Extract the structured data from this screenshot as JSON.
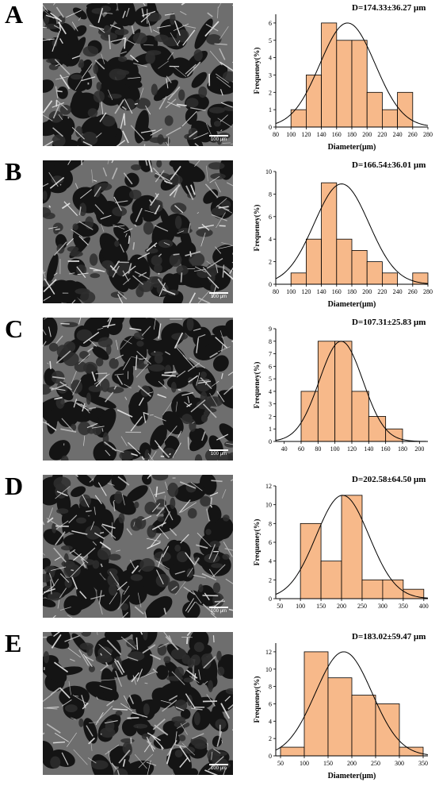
{
  "scale_label": "100 μm",
  "colors": {
    "bar_fill": "#f7b98a",
    "bar_stroke": "#000000",
    "curve": "#000000"
  },
  "chart_data": [
    {
      "panel": "A",
      "type": "bar",
      "title": "D=174.33±36.27 μm",
      "xlabel": "Diameter(μm)",
      "ylabel": "Frequeney(%)",
      "xlim": [
        80,
        280
      ],
      "ylim": [
        0,
        6.5
      ],
      "xticks": [
        80,
        100,
        120,
        140,
        160,
        180,
        200,
        220,
        240,
        260,
        280
      ],
      "yticks": [
        0,
        1,
        2,
        3,
        4,
        5,
        6
      ],
      "bin_edges": [
        100,
        120,
        140,
        160,
        180,
        200,
        220,
        240,
        260
      ],
      "values": [
        1,
        3,
        6,
        5,
        5,
        2,
        1,
        2
      ],
      "fit": {
        "mean": 174.33,
        "sd": 36.27,
        "peak": 6
      }
    },
    {
      "panel": "B",
      "type": "bar",
      "title": "D=166.54±36.01 μm",
      "xlabel": "Diameter(μm)",
      "ylabel": "Frequeney(%)",
      "xlim": [
        80,
        280
      ],
      "ylim": [
        0,
        10
      ],
      "xticks": [
        80,
        100,
        120,
        140,
        160,
        180,
        200,
        220,
        240,
        260,
        280
      ],
      "yticks": [
        0,
        2,
        4,
        6,
        8,
        10
      ],
      "bin_edges": [
        100,
        120,
        140,
        160,
        180,
        200,
        220,
        240,
        260,
        280
      ],
      "values": [
        1,
        4,
        9,
        4,
        3,
        2,
        1,
        0,
        1
      ],
      "fit": {
        "mean": 166.54,
        "sd": 36.01,
        "peak": 8.9
      }
    },
    {
      "panel": "C",
      "type": "bar",
      "title": "D=107.31±25.83 μm",
      "xlabel": "",
      "ylabel": "Frequeney(%)",
      "xlim": [
        30,
        210
      ],
      "ylim": [
        0,
        9
      ],
      "xticks": [
        40,
        60,
        80,
        100,
        120,
        140,
        160,
        180,
        200
      ],
      "yticks": [
        0,
        1,
        2,
        3,
        4,
        5,
        6,
        7,
        8,
        9
      ],
      "bin_edges": [
        60,
        80,
        100,
        120,
        140,
        160,
        180
      ],
      "values": [
        4,
        8,
        8,
        4,
        2,
        1
      ],
      "fit": {
        "mean": 107.31,
        "sd": 25.83,
        "peak": 8
      }
    },
    {
      "panel": "D",
      "type": "bar",
      "title": "D=202.58±64.50 μm",
      "xlabel": "",
      "ylabel": "Frequeney(%)",
      "xlim": [
        40,
        410
      ],
      "ylim": [
        0,
        12
      ],
      "xticks": [
        50,
        100,
        150,
        200,
        250,
        300,
        350,
        400
      ],
      "yticks": [
        0,
        2,
        4,
        6,
        8,
        10,
        12
      ],
      "bin_edges": [
        100,
        150,
        200,
        250,
        300,
        350,
        400
      ],
      "values": [
        8,
        4,
        11,
        2,
        2,
        1
      ],
      "fit": {
        "mean": 202.58,
        "sd": 64.5,
        "peak": 11
      }
    },
    {
      "panel": "E",
      "type": "bar",
      "title": "D=183.02±59.47 μm",
      "xlabel": "Diameter(μm)",
      "ylabel": "Frequeney(%)",
      "xlim": [
        40,
        360
      ],
      "ylim": [
        0,
        13
      ],
      "xticks": [
        50,
        100,
        150,
        200,
        250,
        300,
        350
      ],
      "yticks": [
        0,
        2,
        4,
        6,
        8,
        10,
        12
      ],
      "bin_edges": [
        50,
        100,
        150,
        200,
        250,
        300,
        350
      ],
      "values": [
        1,
        12,
        9,
        7,
        6,
        1
      ],
      "fit": {
        "mean": 183.02,
        "sd": 59.47,
        "peak": 12
      }
    }
  ]
}
